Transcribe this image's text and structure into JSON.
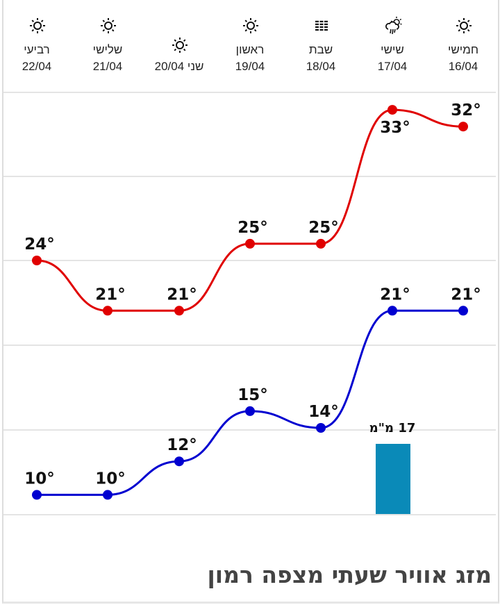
{
  "days": [
    {
      "name": "חמישי",
      "date": "16/04",
      "icon": "sun-icon",
      "high": 32,
      "low": 21
    },
    {
      "name": "שישי",
      "date": "17/04",
      "icon": "cloud-rain-sun-icon",
      "high": 33,
      "low": 21
    },
    {
      "name": "שבת",
      "date": "18/04",
      "icon": "haze-icon",
      "high": 25,
      "low": 14
    },
    {
      "name": "ראשון",
      "date": "19/04",
      "icon": "sun-icon",
      "high": 25,
      "low": 15
    },
    {
      "name": "שני",
      "date": "20/04",
      "icon": "sun-icon",
      "high": 21,
      "low": 12
    },
    {
      "name": "שלישי",
      "date": "21/04",
      "icon": "sun-icon",
      "high": 21,
      "low": 10
    },
    {
      "name": "רביעי",
      "date": "22/04",
      "icon": "sun-icon",
      "high": 24,
      "low": 10
    }
  ],
  "day20_label": "שני 20/04",
  "chart_data": {
    "type": "line",
    "categories": [
      "16/04",
      "17/04",
      "18/04",
      "19/04",
      "20/04",
      "21/04",
      "22/04"
    ],
    "series": [
      {
        "name": "high",
        "color": "#e00000",
        "values": [
          32,
          33,
          25,
          25,
          21,
          21,
          24
        ]
      },
      {
        "name": "low",
        "color": "#0000d0",
        "values": [
          21,
          21,
          14,
          15,
          12,
          10,
          10
        ]
      }
    ],
    "unit_suffix": "°",
    "precipitation": {
      "category": "17/04",
      "value": 17,
      "label": "17 מ\"מ",
      "color": "#0a8ab8"
    }
  },
  "title": "מזג אוויר שעתי מצפה רמון"
}
